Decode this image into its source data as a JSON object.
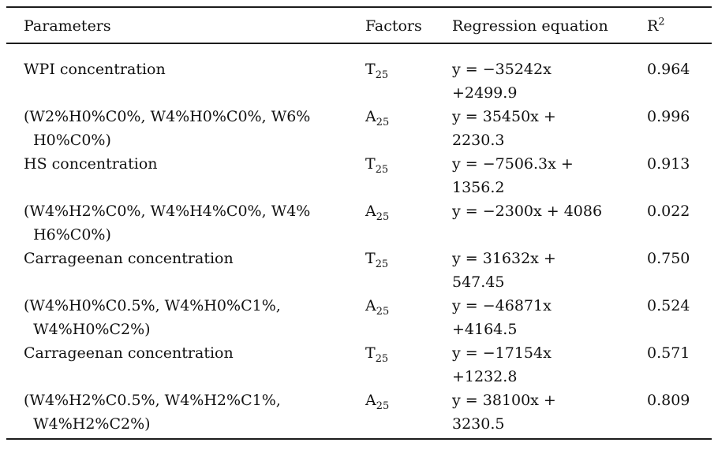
{
  "table": {
    "header": {
      "parameters": "Parameters",
      "factors": "Factors",
      "regression": "Regression equation",
      "r_base": "R",
      "r_sup": "2"
    },
    "rows": [
      {
        "parameter": "WPI concentration",
        "factor": {
          "base": "T",
          "sub": "25"
        },
        "equation": "y = −35242x\n+2499.9",
        "r2": "0.964"
      },
      {
        "parameter": "(W2%H0%C0%, W4%H0%C0%, W6%\n  H0%C0%)",
        "factor": {
          "base": "A",
          "sub": "25"
        },
        "equation": "y = 35450x +\n2230.3",
        "r2": "0.996"
      },
      {
        "parameter": "HS concentration",
        "factor": {
          "base": "T",
          "sub": "25"
        },
        "equation": "y = −7506.3x +\n1356.2",
        "r2": "0.913"
      },
      {
        "parameter": "(W4%H2%C0%, W4%H4%C0%, W4%\n  H6%C0%)",
        "factor": {
          "base": "A",
          "sub": "25"
        },
        "equation": "y = −2300x + 4086",
        "r2": "0.022"
      },
      {
        "parameter": "Carrageenan concentration",
        "factor": {
          "base": "T",
          "sub": "25"
        },
        "equation": "y = 31632x +\n547.45",
        "r2": "0.750"
      },
      {
        "parameter": "(W4%H0%C0.5%, W4%H0%C1%,\n  W4%H0%C2%)",
        "factor": {
          "base": "A",
          "sub": "25"
        },
        "equation": "y = −46871x\n+4164.5",
        "r2": "0.524"
      },
      {
        "parameter": "Carrageenan concentration",
        "factor": {
          "base": "T",
          "sub": "25"
        },
        "equation": "y = −17154x\n+1232.8",
        "r2": "0.571"
      },
      {
        "parameter": "(W4%H2%C0.5%, W4%H2%C1%,\n  W4%H2%C2%)",
        "factor": {
          "base": "A",
          "sub": "25"
        },
        "equation": "y = 38100x +\n3230.5",
        "r2": "0.809"
      }
    ]
  },
  "colors": {
    "text": "#111111",
    "rule": "#1c1c1c",
    "background": "#ffffff"
  }
}
